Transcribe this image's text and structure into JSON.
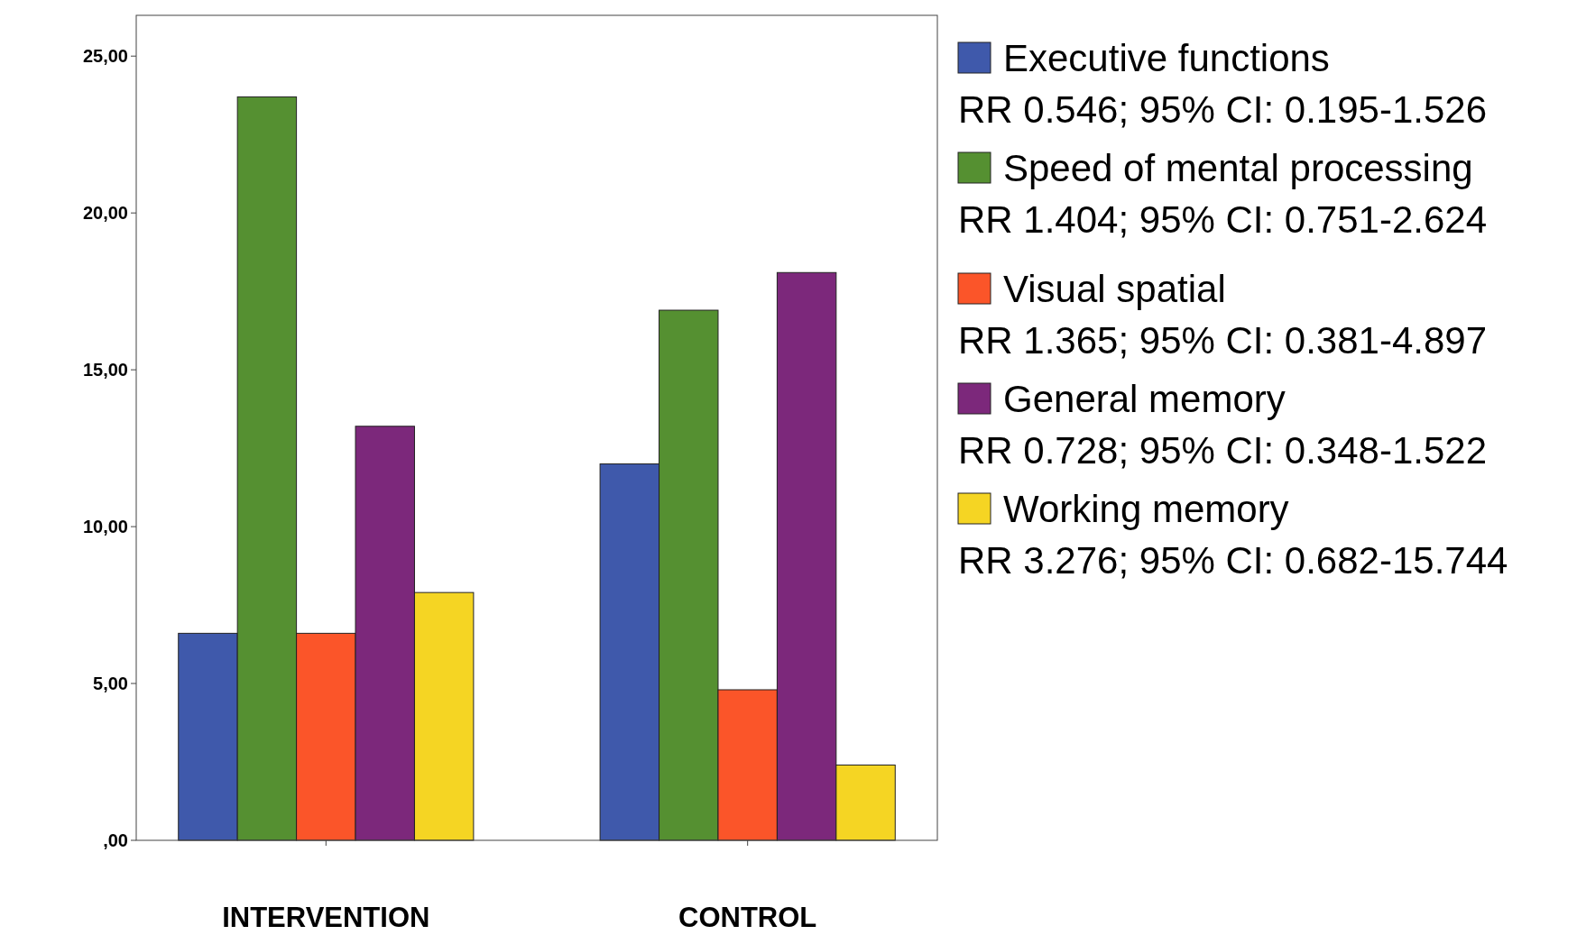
{
  "chart_data": {
    "type": "bar",
    "categories": [
      "INTERVENTION",
      "CONTROL"
    ],
    "series": [
      {
        "name": "Executive functions",
        "color": "#3f59ab",
        "values": [
          6.6,
          12.0
        ]
      },
      {
        "name": "Speed of mental processing",
        "color": "#559031",
        "values": [
          23.7,
          16.9
        ]
      },
      {
        "name": "Visual spatial",
        "color": "#fb5529",
        "values": [
          6.6,
          4.8
        ]
      },
      {
        "name": "General memory",
        "color": "#7c287b",
        "values": [
          13.2,
          18.1
        ]
      },
      {
        "name": "Working memory",
        "color": "#f5d523",
        "values": [
          7.9,
          2.4
        ]
      }
    ],
    "ylim": [
      0,
      26.3
    ],
    "yticks": [
      {
        "value": 0,
        "label": ",00"
      },
      {
        "value": 5,
        "label": "5,00"
      },
      {
        "value": 10,
        "label": "10,00"
      },
      {
        "value": 15,
        "label": "15,00"
      },
      {
        "value": 20,
        "label": "20,00"
      },
      {
        "value": 25,
        "label": "25,00"
      }
    ],
    "annotations": [
      "RR 0.546; 95% CI: 0.195-1.526",
      "RR 1.404; 95% CI: 0.751-2.624",
      "RR 1.365; 95% CI: 0.381-4.897",
      "RR 0.728; 95% CI: 0.348-1.522",
      "RR 3.276; 95% CI: 0.682-15.744"
    ],
    "legend": "right",
    "grid": false
  }
}
